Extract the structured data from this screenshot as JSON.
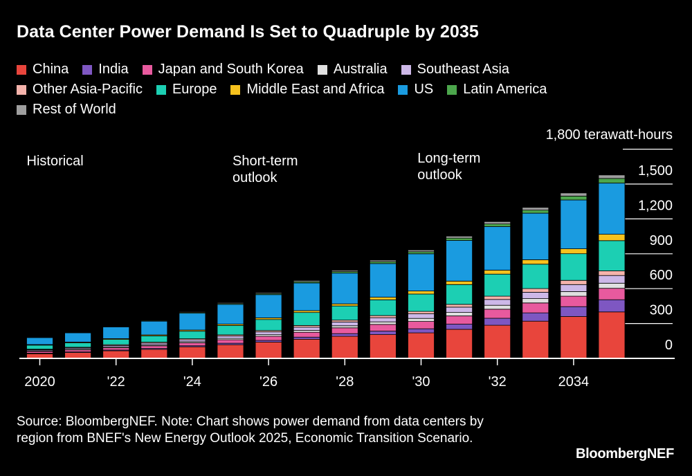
{
  "title": "Data Center Power Demand Is Set to Quadruple by 2035",
  "source": "Source: BloombergNEF. Note: Chart shows power demand from data centers by region from BNEF's New Energy Outlook 2025, Economic Transition Scenario.",
  "brand": "BloombergNEF",
  "legend_rows": [
    [
      0,
      1,
      2,
      3,
      4
    ],
    [
      5,
      6,
      7,
      8,
      9
    ],
    [
      10
    ]
  ],
  "chart_data": {
    "type": "bar",
    "stacked": true,
    "unit_label": "1,800 terawatt-hours",
    "ylim": [
      0,
      1800
    ],
    "y_ticks": [
      {
        "value": 0,
        "label": "0"
      },
      {
        "value": 300,
        "label": "300"
      },
      {
        "value": 600,
        "label": "600"
      },
      {
        "value": 900,
        "label": "900"
      },
      {
        "value": 1200,
        "label": "1,200"
      },
      {
        "value": 1500,
        "label": "1,500"
      }
    ],
    "x_ticks": [
      {
        "year": 2020,
        "label": "2020"
      },
      {
        "year": 2022,
        "label": "'22"
      },
      {
        "year": 2024,
        "label": "'24"
      },
      {
        "year": 2026,
        "label": "'26"
      },
      {
        "year": 2028,
        "label": "'28"
      },
      {
        "year": 2030,
        "label": "'30"
      },
      {
        "year": 2032,
        "label": "'32"
      },
      {
        "year": 2034,
        "label": "2034"
      }
    ],
    "phases": [
      {
        "label": [
          "Historical"
        ],
        "year": 2020
      },
      {
        "label": [
          "Short-term",
          "outlook"
        ],
        "year": 2025.4
      },
      {
        "label": [
          "Long-term",
          "outlook"
        ],
        "year": 2030.25
      }
    ],
    "categories": [
      2020,
      2021,
      2022,
      2023,
      2024,
      2025,
      2026,
      2027,
      2028,
      2029,
      2030,
      2031,
      2032,
      2033,
      2034,
      2035
    ],
    "series": [
      {
        "name": "China",
        "color": "#e8453c",
        "values": [
          40,
          50,
          65,
          78,
          100,
          118,
          140,
          165,
          190,
          205,
          220,
          250,
          285,
          320,
          360,
          400
        ]
      },
      {
        "name": "India",
        "color": "#7e57c2",
        "values": [
          5,
          6,
          7,
          8,
          9,
          12,
          15,
          18,
          23,
          29,
          35,
          45,
          60,
          72,
          85,
          105
        ]
      },
      {
        "name": "Japan and South Korea",
        "color": "#e85a9e",
        "values": [
          15,
          17,
          19,
          22,
          25,
          30,
          35,
          42,
          50,
          58,
          63,
          70,
          78,
          85,
          90,
          98
        ]
      },
      {
        "name": "Australia",
        "color": "#e0e0e0",
        "values": [
          6,
          7,
          8,
          9,
          10,
          12,
          14,
          16,
          18,
          22,
          26,
          30,
          34,
          37,
          40,
          44
        ]
      },
      {
        "name": "Southeast Asia",
        "color": "#cdb8e8",
        "values": [
          8,
          10,
          12,
          14,
          16,
          20,
          24,
          28,
          32,
          36,
          40,
          46,
          50,
          55,
          60,
          66
        ]
      },
      {
        "name": "Other Asia-Pacific",
        "color": "#f5b3ab",
        "values": [
          5,
          6,
          7,
          8,
          9,
          11,
          12,
          14,
          16,
          18,
          20,
          24,
          28,
          32,
          36,
          40
        ]
      },
      {
        "name": "Europe",
        "color": "#1ccfb3",
        "values": [
          35,
          38,
          45,
          55,
          65,
          80,
          95,
          112,
          122,
          136,
          150,
          170,
          190,
          210,
          230,
          260
        ]
      },
      {
        "name": "Middle East and Africa",
        "color": "#f7c21d",
        "values": [
          5,
          6,
          7,
          8,
          10,
          12,
          14,
          16,
          18,
          22,
          26,
          30,
          34,
          38,
          42,
          55
        ]
      },
      {
        "name": "US",
        "color": "#1a9be0",
        "values": [
          60,
          80,
          100,
          118,
          145,
          170,
          200,
          238,
          265,
          290,
          320,
          350,
          375,
          400,
          420,
          440
        ]
      },
      {
        "name": "Latin America",
        "color": "#4ca64c",
        "values": [
          3,
          4,
          5,
          6,
          7,
          8,
          9,
          11,
          13,
          16,
          18,
          20,
          23,
          27,
          33,
          40
        ]
      },
      {
        "name": "Rest of World",
        "color": "#9e9e9e",
        "values": [
          3,
          3,
          4,
          5,
          6,
          7,
          8,
          10,
          11,
          13,
          15,
          17,
          20,
          23,
          27,
          30
        ]
      }
    ]
  }
}
